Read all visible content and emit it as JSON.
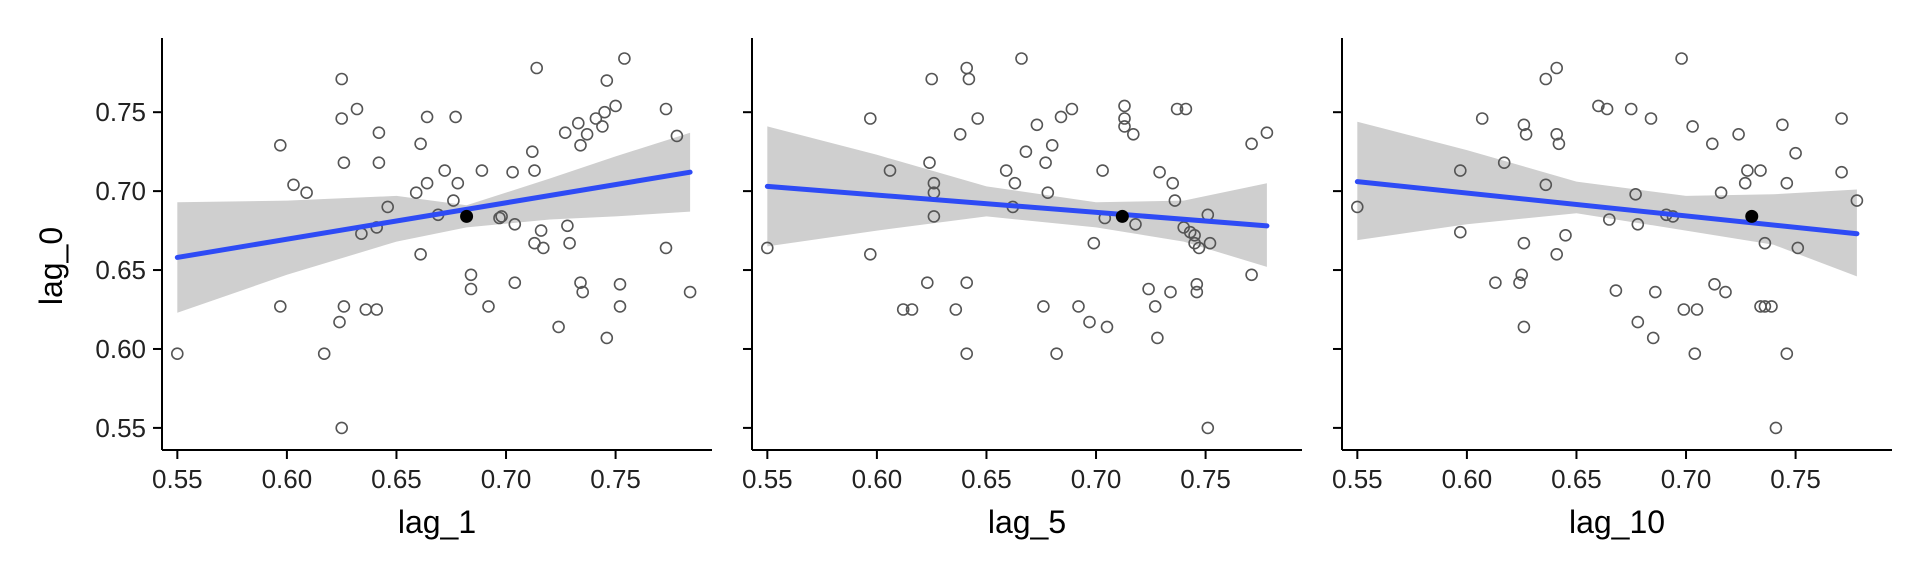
{
  "chart_data": [
    {
      "type": "scatter",
      "xlabel": "lag_1",
      "ylabel": "lag_0",
      "xlim": [
        0.543,
        0.794
      ],
      "ylim": [
        0.536,
        0.797
      ],
      "xticks": [
        0.55,
        0.6,
        0.65,
        0.7,
        0.75
      ],
      "xtick_labels": [
        "0.55",
        "0.60",
        "0.65",
        "0.70",
        "0.75"
      ],
      "yticks": [
        0.55,
        0.6,
        0.65,
        0.7,
        0.75
      ],
      "ytick_labels": [
        "0.55",
        "0.60",
        "0.65",
        "0.70",
        "0.75"
      ],
      "grid": false,
      "points": [
        [
          0.55,
          0.597
        ],
        [
          0.597,
          0.729
        ],
        [
          0.597,
          0.627
        ],
        [
          0.603,
          0.704
        ],
        [
          0.609,
          0.699
        ],
        [
          0.617,
          0.597
        ],
        [
          0.625,
          0.771
        ],
        [
          0.625,
          0.746
        ],
        [
          0.626,
          0.718
        ],
        [
          0.624,
          0.617
        ],
        [
          0.626,
          0.627
        ],
        [
          0.625,
          0.55
        ],
        [
          0.632,
          0.752
        ],
        [
          0.634,
          0.673
        ],
        [
          0.636,
          0.625
        ],
        [
          0.641,
          0.677
        ],
        [
          0.642,
          0.718
        ],
        [
          0.642,
          0.737
        ],
        [
          0.641,
          0.625
        ],
        [
          0.646,
          0.69
        ],
        [
          0.659,
          0.699
        ],
        [
          0.661,
          0.73
        ],
        [
          0.661,
          0.66
        ],
        [
          0.664,
          0.747
        ],
        [
          0.664,
          0.705
        ],
        [
          0.669,
          0.685
        ],
        [
          0.672,
          0.713
        ],
        [
          0.676,
          0.694
        ],
        [
          0.677,
          0.747
        ],
        [
          0.678,
          0.705
        ],
        [
          0.684,
          0.647
        ],
        [
          0.684,
          0.638
        ],
        [
          0.689,
          0.713
        ],
        [
          0.692,
          0.627
        ],
        [
          0.697,
          0.683
        ],
        [
          0.698,
          0.684
        ],
        [
          0.703,
          0.712
        ],
        [
          0.704,
          0.679
        ],
        [
          0.704,
          0.642
        ],
        [
          0.712,
          0.725
        ],
        [
          0.713,
          0.713
        ],
        [
          0.713,
          0.667
        ],
        [
          0.714,
          0.778
        ],
        [
          0.716,
          0.675
        ],
        [
          0.717,
          0.664
        ],
        [
          0.724,
          0.614
        ],
        [
          0.727,
          0.737
        ],
        [
          0.728,
          0.678
        ],
        [
          0.729,
          0.667
        ],
        [
          0.733,
          0.743
        ],
        [
          0.734,
          0.729
        ],
        [
          0.734,
          0.642
        ],
        [
          0.735,
          0.636
        ],
        [
          0.737,
          0.736
        ],
        [
          0.741,
          0.746
        ],
        [
          0.744,
          0.741
        ],
        [
          0.745,
          0.75
        ],
        [
          0.746,
          0.77
        ],
        [
          0.746,
          0.607
        ],
        [
          0.75,
          0.754
        ],
        [
          0.752,
          0.641
        ],
        [
          0.752,
          0.627
        ],
        [
          0.754,
          0.784
        ],
        [
          0.773,
          0.752
        ],
        [
          0.773,
          0.664
        ],
        [
          0.778,
          0.735
        ],
        [
          0.784,
          0.636
        ]
      ],
      "highlight": [
        0.682,
        0.684
      ],
      "fit": {
        "x": [
          0.55,
          0.784
        ],
        "y": [
          0.658,
          0.712
        ]
      },
      "band": {
        "x": [
          0.55,
          0.6,
          0.65,
          0.682,
          0.72,
          0.75,
          0.784
        ],
        "lower": [
          0.623,
          0.647,
          0.668,
          0.677,
          0.682,
          0.684,
          0.687
        ],
        "upper": [
          0.693,
          0.694,
          0.697,
          0.691,
          0.708,
          0.722,
          0.737
        ]
      }
    },
    {
      "type": "scatter",
      "xlabel": "lag_5",
      "ylabel": "",
      "xlim": [
        0.543,
        0.794
      ],
      "ylim": [
        0.536,
        0.797
      ],
      "xticks": [
        0.55,
        0.6,
        0.65,
        0.7,
        0.75
      ],
      "xtick_labels": [
        "0.55",
        "0.60",
        "0.65",
        "0.70",
        "0.75"
      ],
      "yticks": [
        0.55,
        0.6,
        0.65,
        0.7,
        0.75
      ],
      "ytick_labels": [],
      "grid": false,
      "points": [
        [
          0.55,
          0.664
        ],
        [
          0.597,
          0.746
        ],
        [
          0.597,
          0.66
        ],
        [
          0.606,
          0.713
        ],
        [
          0.612,
          0.625
        ],
        [
          0.616,
          0.625
        ],
        [
          0.623,
          0.642
        ],
        [
          0.624,
          0.718
        ],
        [
          0.625,
          0.771
        ],
        [
          0.626,
          0.705
        ],
        [
          0.626,
          0.699
        ],
        [
          0.626,
          0.684
        ],
        [
          0.636,
          0.625
        ],
        [
          0.638,
          0.736
        ],
        [
          0.641,
          0.778
        ],
        [
          0.642,
          0.771
        ],
        [
          0.641,
          0.642
        ],
        [
          0.641,
          0.597
        ],
        [
          0.646,
          0.746
        ],
        [
          0.659,
          0.713
        ],
        [
          0.662,
          0.69
        ],
        [
          0.663,
          0.705
        ],
        [
          0.666,
          0.784
        ],
        [
          0.668,
          0.725
        ],
        [
          0.673,
          0.742
        ],
        [
          0.676,
          0.627
        ],
        [
          0.677,
          0.718
        ],
        [
          0.678,
          0.699
        ],
        [
          0.68,
          0.729
        ],
        [
          0.682,
          0.597
        ],
        [
          0.684,
          0.747
        ],
        [
          0.689,
          0.752
        ],
        [
          0.692,
          0.627
        ],
        [
          0.697,
          0.617
        ],
        [
          0.699,
          0.667
        ],
        [
          0.703,
          0.713
        ],
        [
          0.704,
          0.683
        ],
        [
          0.705,
          0.614
        ],
        [
          0.713,
          0.754
        ],
        [
          0.713,
          0.746
        ],
        [
          0.713,
          0.741
        ],
        [
          0.717,
          0.736
        ],
        [
          0.718,
          0.679
        ],
        [
          0.724,
          0.638
        ],
        [
          0.727,
          0.627
        ],
        [
          0.728,
          0.607
        ],
        [
          0.729,
          0.712
        ],
        [
          0.734,
          0.636
        ],
        [
          0.735,
          0.705
        ],
        [
          0.736,
          0.694
        ],
        [
          0.737,
          0.752
        ],
        [
          0.74,
          0.677
        ],
        [
          0.741,
          0.752
        ],
        [
          0.743,
          0.674
        ],
        [
          0.745,
          0.672
        ],
        [
          0.745,
          0.667
        ],
        [
          0.746,
          0.641
        ],
        [
          0.746,
          0.636
        ],
        [
          0.747,
          0.664
        ],
        [
          0.751,
          0.685
        ],
        [
          0.752,
          0.667
        ],
        [
          0.751,
          0.55
        ],
        [
          0.771,
          0.647
        ],
        [
          0.771,
          0.73
        ],
        [
          0.778,
          0.737
        ]
      ],
      "highlight": [
        0.712,
        0.684
      ],
      "fit": {
        "x": [
          0.55,
          0.778
        ],
        "y": [
          0.703,
          0.678
        ]
      },
      "band": {
        "x": [
          0.55,
          0.6,
          0.65,
          0.7,
          0.74,
          0.778
        ],
        "lower": [
          0.665,
          0.675,
          0.684,
          0.677,
          0.668,
          0.652
        ],
        "upper": [
          0.741,
          0.723,
          0.703,
          0.693,
          0.694,
          0.705
        ]
      }
    },
    {
      "type": "scatter",
      "xlabel": "lag_10",
      "ylabel": "",
      "xlim": [
        0.543,
        0.794
      ],
      "ylim": [
        0.536,
        0.797
      ],
      "xticks": [
        0.55,
        0.6,
        0.65,
        0.7,
        0.75
      ],
      "xtick_labels": [
        "0.55",
        "0.60",
        "0.65",
        "0.70",
        "0.75"
      ],
      "yticks": [
        0.55,
        0.6,
        0.65,
        0.7,
        0.75
      ],
      "ytick_labels": [],
      "grid": false,
      "points": [
        [
          0.55,
          0.69
        ],
        [
          0.597,
          0.713
        ],
        [
          0.597,
          0.674
        ],
        [
          0.607,
          0.746
        ],
        [
          0.613,
          0.642
        ],
        [
          0.617,
          0.718
        ],
        [
          0.624,
          0.642
        ],
        [
          0.625,
          0.647
        ],
        [
          0.626,
          0.614
        ],
        [
          0.626,
          0.667
        ],
        [
          0.626,
          0.742
        ],
        [
          0.627,
          0.736
        ],
        [
          0.636,
          0.771
        ],
        [
          0.636,
          0.704
        ],
        [
          0.641,
          0.778
        ],
        [
          0.641,
          0.736
        ],
        [
          0.642,
          0.73
        ],
        [
          0.641,
          0.66
        ],
        [
          0.645,
          0.672
        ],
        [
          0.66,
          0.754
        ],
        [
          0.664,
          0.752
        ],
        [
          0.665,
          0.682
        ],
        [
          0.668,
          0.637
        ],
        [
          0.675,
          0.752
        ],
        [
          0.677,
          0.698
        ],
        [
          0.678,
          0.617
        ],
        [
          0.678,
          0.679
        ],
        [
          0.684,
          0.746
        ],
        [
          0.685,
          0.607
        ],
        [
          0.686,
          0.636
        ],
        [
          0.691,
          0.685
        ],
        [
          0.694,
          0.684
        ],
        [
          0.698,
          0.784
        ],
        [
          0.699,
          0.625
        ],
        [
          0.703,
          0.741
        ],
        [
          0.704,
          0.597
        ],
        [
          0.705,
          0.625
        ],
        [
          0.712,
          0.73
        ],
        [
          0.713,
          0.641
        ],
        [
          0.716,
          0.699
        ],
        [
          0.718,
          0.636
        ],
        [
          0.724,
          0.736
        ],
        [
          0.727,
          0.705
        ],
        [
          0.728,
          0.713
        ],
        [
          0.734,
          0.713
        ],
        [
          0.734,
          0.627
        ],
        [
          0.736,
          0.627
        ],
        [
          0.736,
          0.667
        ],
        [
          0.739,
          0.627
        ],
        [
          0.741,
          0.55
        ],
        [
          0.744,
          0.742
        ],
        [
          0.746,
          0.705
        ],
        [
          0.746,
          0.597
        ],
        [
          0.75,
          0.724
        ],
        [
          0.751,
          0.664
        ],
        [
          0.771,
          0.746
        ],
        [
          0.771,
          0.712
        ],
        [
          0.778,
          0.694
        ]
      ],
      "highlight": [
        0.73,
        0.684
      ],
      "fit": {
        "x": [
          0.55,
          0.778
        ],
        "y": [
          0.706,
          0.673
        ]
      },
      "band": {
        "x": [
          0.55,
          0.6,
          0.65,
          0.7,
          0.74,
          0.778
        ],
        "lower": [
          0.669,
          0.679,
          0.686,
          0.675,
          0.666,
          0.646
        ],
        "upper": [
          0.744,
          0.726,
          0.706,
          0.697,
          0.698,
          0.701
        ]
      }
    }
  ]
}
